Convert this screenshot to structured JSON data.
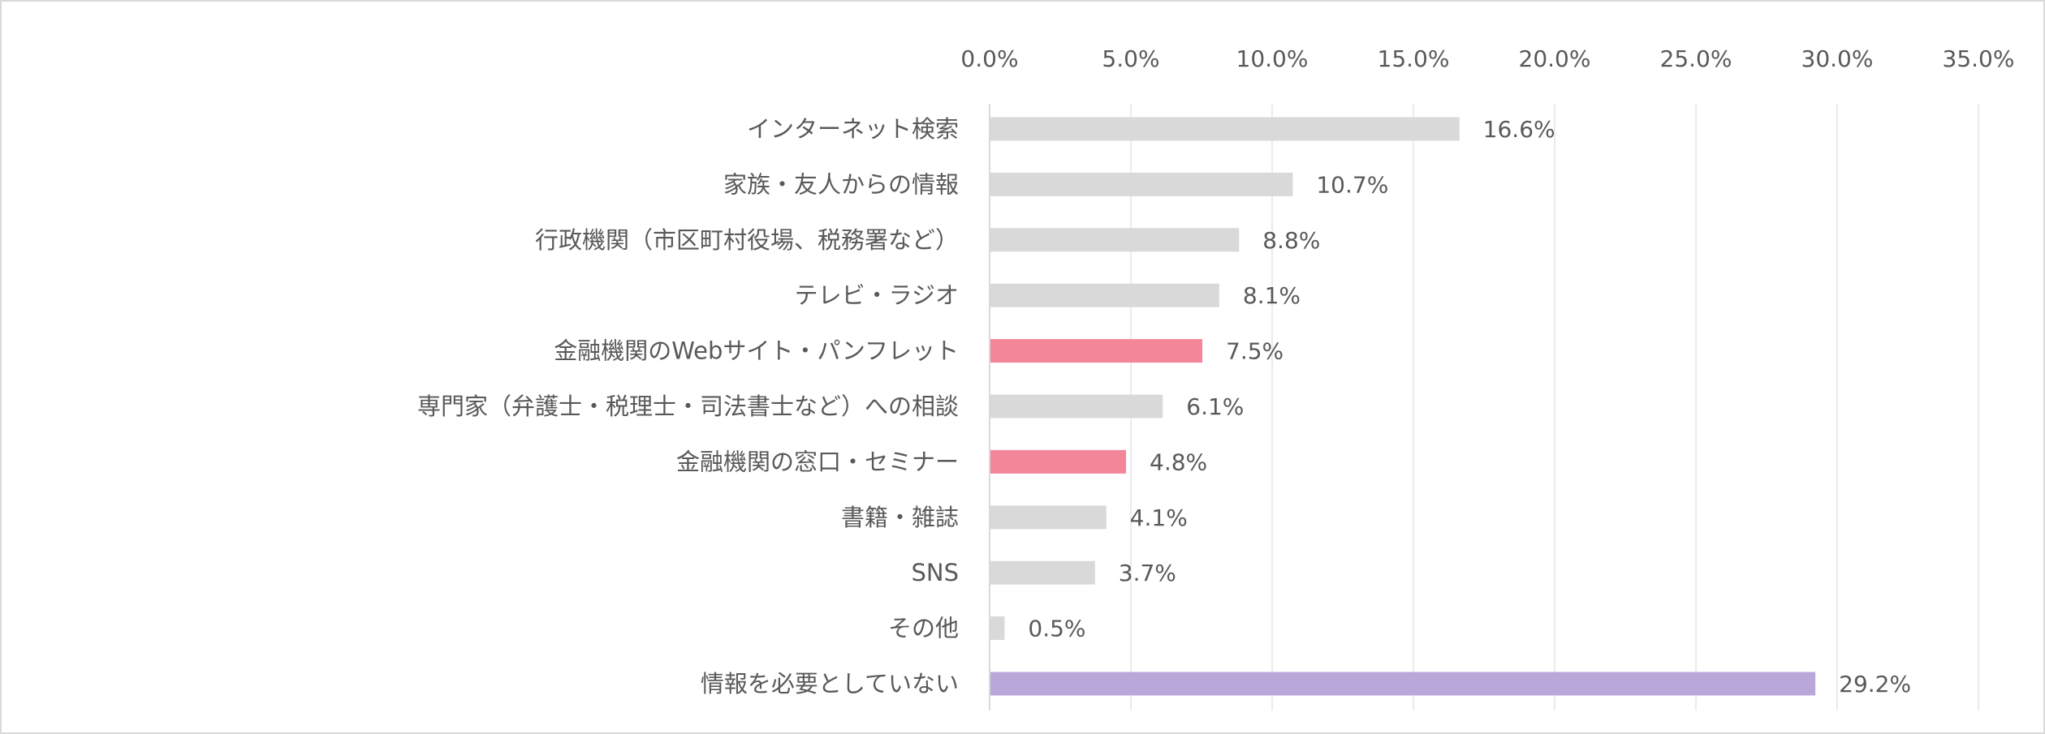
{
  "chart_data": {
    "type": "bar",
    "orientation": "horizontal",
    "categories": [
      "インターネット検索",
      "家族・友人からの情報",
      "行政機関（市区町村役場、税務署など）",
      "テレビ・ラジオ",
      "金融機関のWebサイト・パンフレット",
      "専門家（弁護士・税理士・司法書士など）への相談",
      "金融機関の窓口・セミナー",
      "書籍・雑誌",
      "SNS",
      "その他",
      "情報を必要としていない"
    ],
    "values": [
      16.6,
      10.7,
      8.8,
      8.1,
      7.5,
      6.1,
      4.8,
      4.1,
      3.7,
      0.5,
      29.2
    ],
    "data_labels": [
      "16.6%",
      "10.7%",
      "8.8%",
      "8.1%",
      "7.5%",
      "6.1%",
      "4.8%",
      "4.1%",
      "3.7%",
      "0.5%",
      "29.2%"
    ],
    "bar_colors": [
      "#d9d9d9",
      "#d9d9d9",
      "#d9d9d9",
      "#d9d9d9",
      "#f4869a",
      "#d9d9d9",
      "#f4869a",
      "#d9d9d9",
      "#d9d9d9",
      "#d9d9d9",
      "#b9a7da"
    ],
    "xlim": [
      0,
      35
    ],
    "x_ticks": [
      0,
      5,
      10,
      15,
      20,
      25,
      30,
      35
    ],
    "x_tick_labels": [
      "0.0%",
      "5.0%",
      "10.0%",
      "15.0%",
      "20.0%",
      "25.0%",
      "30.0%",
      "35.0%"
    ],
    "x_axis_position": "top",
    "grid": true,
    "gridline_color": "#ebebeb",
    "title": "",
    "xlabel": "",
    "ylabel": ""
  }
}
